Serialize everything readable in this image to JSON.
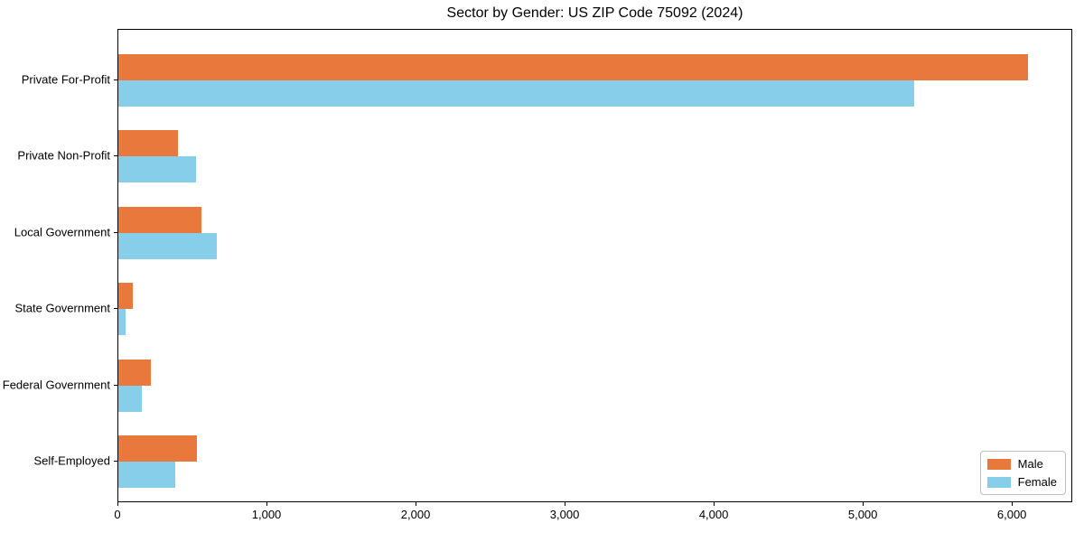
{
  "title": "Sector by Gender: US ZIP Code 75092 (2024)",
  "colors": {
    "male": "#e8783c",
    "female": "#87ceeb",
    "spine": "#000000",
    "background": "#ffffff",
    "legend_border": "#bdbdbd"
  },
  "chart_data": {
    "type": "bar",
    "orientation": "horizontal",
    "title": "Sector by Gender: US ZIP Code 75092 (2024)",
    "xlabel": "",
    "ylabel": "",
    "categories": [
      "Private For-Profit",
      "Private Non-Profit",
      "Local Government",
      "State Government",
      "Federal Government",
      "Self-Employed"
    ],
    "series": [
      {
        "name": "Male",
        "color": "#e8783c",
        "values": [
          6100,
          400,
          555,
          95,
          220,
          525
        ]
      },
      {
        "name": "Female",
        "color": "#87ceeb",
        "values": [
          5340,
          520,
          660,
          50,
          160,
          380
        ]
      }
    ],
    "xlim": [
      0,
      6405
    ],
    "x_ticks": [
      0,
      1000,
      2000,
      3000,
      4000,
      5000,
      6000
    ],
    "x_tick_labels": [
      "0",
      "1,000",
      "2,000",
      "3,000",
      "4,000",
      "5,000",
      "6,000"
    ],
    "grid": false,
    "legend_position": "lower right"
  }
}
